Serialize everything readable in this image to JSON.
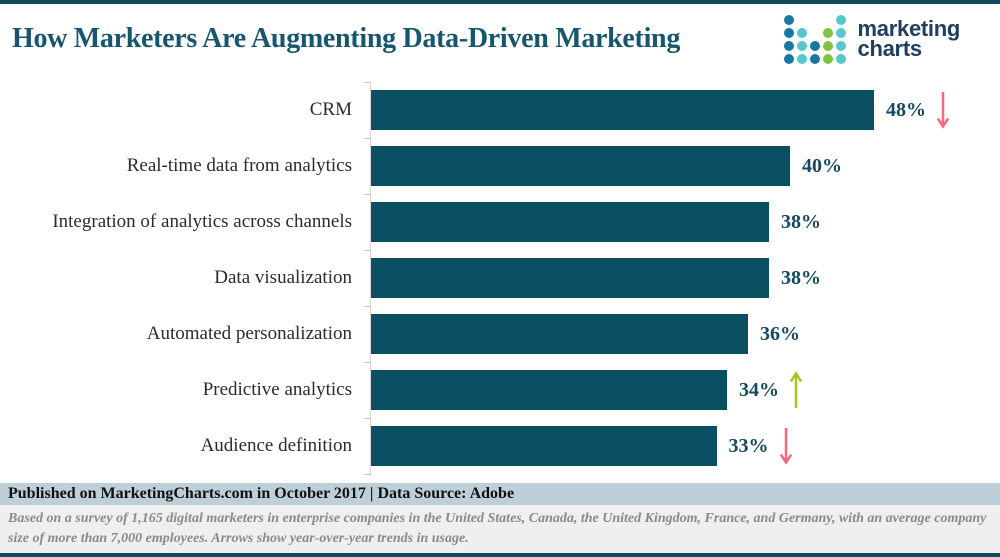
{
  "header": {
    "title": "How Marketers Are Augmenting Data-Driven Marketing",
    "logo": {
      "line1": "marketing",
      "line2": "charts",
      "dot_colors": {
        "d": "#1878a2",
        "l": "#57c7ce",
        "g": "#82c341"
      },
      "dots": [
        [
          "d",
          "",
          "",
          "",
          "l"
        ],
        [
          "d",
          "l",
          "",
          "g",
          "l"
        ],
        [
          "d",
          "l",
          "d",
          "g",
          "l"
        ],
        [
          "d",
          "l",
          "d",
          "g",
          "l"
        ]
      ]
    }
  },
  "chart_data": {
    "type": "bar",
    "orientation": "horizontal",
    "title": "How Marketers Are Augmenting Data-Driven Marketing",
    "xlabel": "",
    "ylabel": "",
    "axis_max": 60,
    "grid": false,
    "legend": false,
    "categories": [
      "CRM",
      "Real-time data from analytics",
      "Integration of analytics across channels",
      "Data visualization",
      "Automated personalization",
      "Predictive analytics",
      "Audience definition"
    ],
    "values": [
      48,
      40,
      38,
      38,
      36,
      34,
      33
    ],
    "value_labels": [
      "48%",
      "40%",
      "38%",
      "38%",
      "36%",
      "34%",
      "33%"
    ],
    "trends": [
      "down",
      "",
      "",
      "",
      "",
      "up",
      "down"
    ],
    "colors": {
      "bar": "#0b4f63",
      "trend_up": "#9fca1d",
      "trend_down": "#f5697f"
    }
  },
  "footer": {
    "published": "Published on MarketingCharts.com in October 2017 | Data Source: Adobe",
    "note": "Based on a survey of 1,165 digital marketers in enterprise companies in the United States, Canada, the United Kingdom, France, and Germany, with an average company size of more than 7,000 employees. Arrows show year-over-year trends in usage."
  },
  "theme": {
    "border": "#134a5e",
    "title": "#17566e",
    "label_text": "#2b2b2b",
    "value_text": "#14495f",
    "bar": "#0b4f63",
    "published_bg": "#becfda",
    "note_bg": "#efefef",
    "note_text": "#8a8a8a",
    "logo_text": "#203e5f"
  }
}
